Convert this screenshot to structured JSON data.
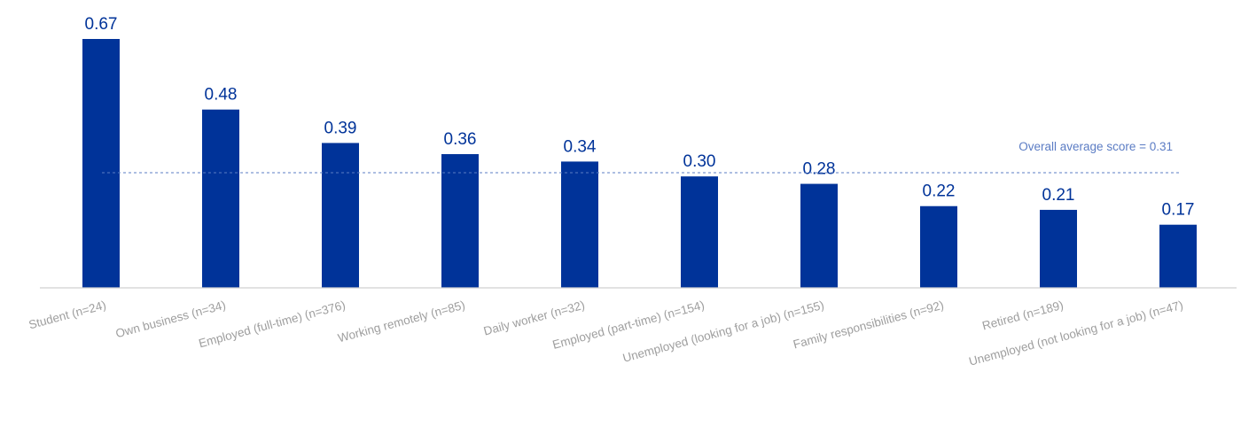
{
  "chart_data": {
    "type": "bar",
    "categories": [
      "Student (n=24)",
      "Own business (n=34)",
      "Employed (full-time) (n=376)",
      "Working remotely (n=85)",
      "Daily worker (n=32)",
      "Employed (part-time) (n=154)",
      "Unemployed (looking for a job) (n=155)",
      "Family responsibilities (n=92)",
      "Retired (n=189)",
      "Unemployed (not looking for a job) (n=47)"
    ],
    "values": [
      0.67,
      0.48,
      0.39,
      0.36,
      0.34,
      0.3,
      0.28,
      0.22,
      0.21,
      0.17
    ],
    "value_labels": [
      "0.67",
      "0.48",
      "0.39",
      "0.36",
      "0.34",
      "0.30",
      "0.28",
      "0.22",
      "0.21",
      "0.17"
    ],
    "ylim": [
      0,
      0.67
    ],
    "bar_color": "#003399",
    "reference_line": {
      "value": 0.31,
      "label": "Overall average score = 0.31",
      "color": "#5b7cc4",
      "style": "dashed"
    },
    "grid": false,
    "legend": "none"
  }
}
